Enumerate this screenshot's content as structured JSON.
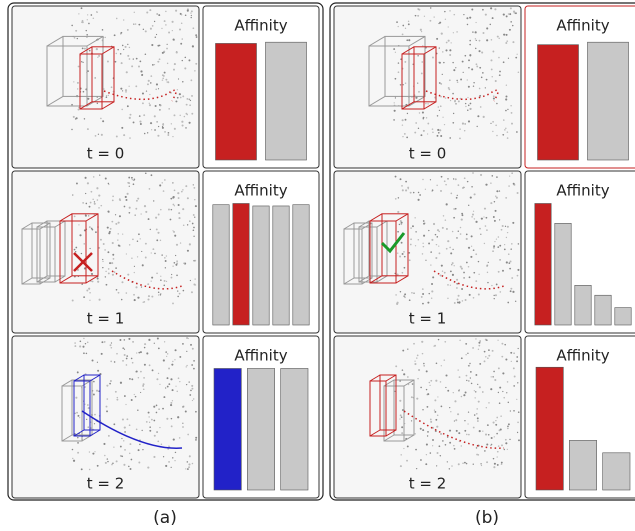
{
  "chart_data": [
    {
      "type": "bar",
      "title": "Affinity",
      "values": [
        0.94,
        0.95
      ],
      "colors": [
        "#c62020",
        "#c8c8c8"
      ],
      "ylim": [
        0,
        1
      ]
    },
    {
      "type": "bar",
      "title": "Affinity",
      "values": [
        0.97,
        0.98,
        0.96,
        0.96,
        0.97
      ],
      "colors": [
        "#c8c8c8",
        "#c62020",
        "#c8c8c8",
        "#c8c8c8",
        "#c8c8c8"
      ],
      "ylim": [
        0,
        1
      ]
    },
    {
      "type": "bar",
      "title": "Affinity",
      "values": [
        0.98,
        0.98,
        0.98
      ],
      "colors": [
        "#2222c8",
        "#c8c8c8",
        "#c8c8c8"
      ],
      "ylim": [
        0,
        1
      ]
    },
    {
      "type": "bar",
      "title": "Affinity",
      "values": [
        0.93,
        0.95
      ],
      "colors": [
        "#c62020",
        "#c8c8c8"
      ],
      "ylim": [
        0,
        1
      ],
      "border_color": "#c62020"
    },
    {
      "type": "bar",
      "title": "Affinity",
      "values": [
        0.98,
        0.82,
        0.32,
        0.24,
        0.14
      ],
      "colors": [
        "#c62020",
        "#c8c8c8",
        "#c8c8c8",
        "#c8c8c8",
        "#c8c8c8"
      ],
      "ylim": [
        0,
        1
      ]
    },
    {
      "type": "bar",
      "title": "Affinity",
      "values": [
        0.99,
        0.4,
        0.3
      ],
      "colors": [
        "#c62020",
        "#c8c8c8",
        "#c8c8c8"
      ],
      "ylim": [
        0,
        1
      ]
    }
  ],
  "scene_labels": [
    "t = 0",
    "t = 1",
    "t = 2",
    "t = 0",
    "t = 1",
    "t = 2"
  ],
  "panel_labels": [
    "(a)",
    "(b)"
  ]
}
